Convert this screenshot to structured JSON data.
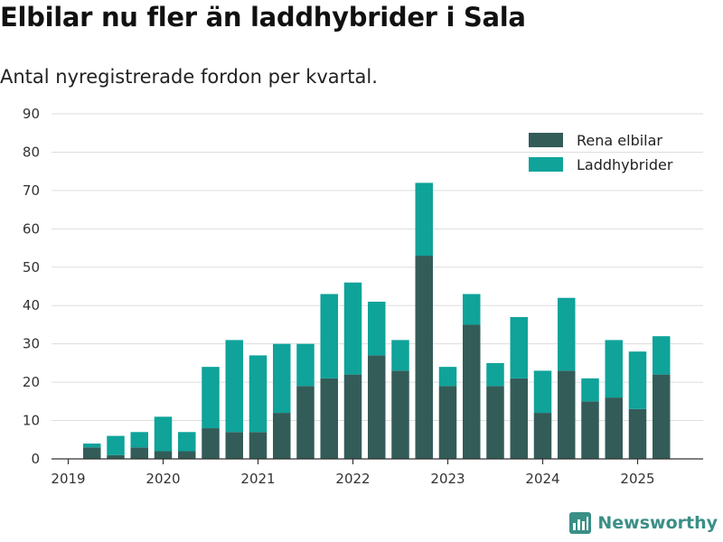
{
  "title": "Elbilar nu fler än laddhybrider i Sala",
  "subtitle": "Antal nyregistrerade fordon per kvartal.",
  "brand": "Newsworthy",
  "colors": {
    "rena": "#335c58",
    "ladd": "#0fa39a",
    "grid": "#dddddd",
    "axis": "#333333"
  },
  "chart_data": {
    "type": "bar",
    "stacked": true,
    "x": [
      "2019-Q1",
      "2019-Q2",
      "2019-Q3",
      "2019-Q4",
      "2020-Q1",
      "2020-Q2",
      "2020-Q3",
      "2020-Q4",
      "2021-Q1",
      "2021-Q2",
      "2021-Q3",
      "2021-Q4",
      "2022-Q1",
      "2022-Q2",
      "2022-Q3",
      "2022-Q4",
      "2023-Q1",
      "2023-Q2",
      "2023-Q3",
      "2023-Q4",
      "2024-Q1",
      "2024-Q2",
      "2024-Q3",
      "2024-Q4",
      "2025-Q1",
      "2025-Q2",
      "2025-Q3"
    ],
    "series": [
      {
        "name": "Rena elbilar",
        "values": [
          0,
          3,
          1,
          3,
          2,
          2,
          8,
          7,
          7,
          12,
          19,
          21,
          22,
          27,
          23,
          53,
          19,
          35,
          19,
          21,
          12,
          23,
          15,
          16,
          13,
          22,
          0
        ]
      },
      {
        "name": "Laddhybrider",
        "values": [
          0,
          1,
          5,
          4,
          9,
          5,
          16,
          24,
          20,
          18,
          11,
          22,
          24,
          14,
          8,
          19,
          5,
          8,
          6,
          16,
          11,
          19,
          6,
          15,
          15,
          10,
          0
        ]
      }
    ],
    "xticks": [
      "2019",
      "2020",
      "2021",
      "2022",
      "2023",
      "2024",
      "2025"
    ],
    "ylim": [
      0,
      90
    ],
    "yticks": [
      0,
      10,
      20,
      30,
      40,
      50,
      60,
      70,
      80,
      90
    ],
    "grid": true,
    "legend": "top-right",
    "xlabel": "",
    "ylabel": ""
  }
}
